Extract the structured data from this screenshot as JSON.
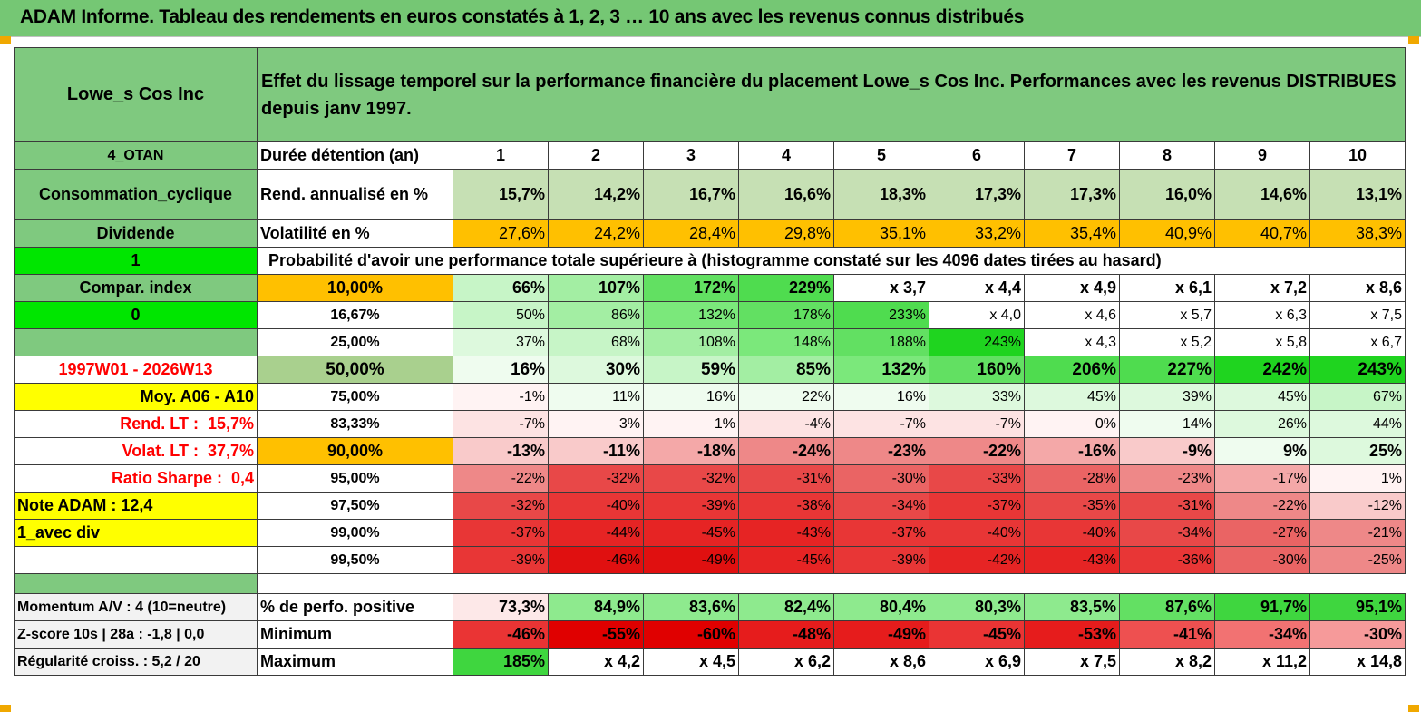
{
  "title": "ADAM Informe. Tableau des rendements en euros constatés à 1, 2, 3 … 10 ans avec les revenus connus distribués",
  "colors": {
    "green_header": "#7fc97f",
    "amber": "#ffc000",
    "yellow": "#ffff00",
    "bright_green": "#00e600",
    "red_text": "#ff0000"
  },
  "left_panel": {
    "instrument": "Lowe_s Cos Inc",
    "group": "4_OTAN",
    "sector": "Consommation_cyclique",
    "type": "Dividende",
    "flag1": "1",
    "compar_index": "Compar. index",
    "flag2": "0",
    "period": "1997W01 - 2026W13",
    "moy": "Moy. A06 - A10",
    "rend_lt_label": "Rend. LT :",
    "rend_lt_value": "15,7%",
    "volat_lt_label": "Volat. LT :",
    "volat_lt_value": "37,7%",
    "sharpe_label": "Ratio Sharpe :",
    "sharpe_value": "0,4",
    "note": "Note ADAM : 12,4",
    "avec_div": "1_avec div",
    "momentum": "Momentum A/V : 4 (10=neutre)",
    "zscore": "Z-score 10s | 28a : -1,8 | 0,0",
    "regularite": "Régularité croiss. : 5,2 / 20"
  },
  "header_description": "Effet du lissage temporel sur la performance financière du placement Lowe_s Cos Inc. Performances avec les revenus DISTRIBUES depuis janv 1997.",
  "duration_label": "Durée détention (an)",
  "years": [
    "1",
    "2",
    "3",
    "4",
    "5",
    "6",
    "7",
    "8",
    "9",
    "10"
  ],
  "rend_label": "Rend. annualisé en %",
  "rend_values": [
    "15,7%",
    "14,2%",
    "16,7%",
    "16,6%",
    "18,3%",
    "17,3%",
    "17,3%",
    "16,0%",
    "14,6%",
    "13,1%"
  ],
  "vol_label": "Volatilité en %",
  "vol_values": [
    "27,6%",
    "24,2%",
    "28,4%",
    "29,8%",
    "35,1%",
    "33,2%",
    "35,4%",
    "40,9%",
    "40,7%",
    "38,3%"
  ],
  "prob_title": "Probabilité d'avoir une performance totale supérieure à (histogramme constaté sur les 4096 dates tirées au hasard)",
  "prob_rows": [
    {
      "p": "10,00%",
      "v": [
        "66%",
        "107%",
        "172%",
        "229%",
        "x 3,7",
        "x 4,4",
        "x 4,9",
        "x 6,1",
        "x 7,2",
        "x 8,6"
      ]
    },
    {
      "p": "16,67%",
      "v": [
        "50%",
        "86%",
        "132%",
        "178%",
        "233%",
        "x 4,0",
        "x 4,6",
        "x 5,7",
        "x 6,3",
        "x 7,5"
      ]
    },
    {
      "p": "25,00%",
      "v": [
        "37%",
        "68%",
        "108%",
        "148%",
        "188%",
        "243%",
        "x 4,3",
        "x 5,2",
        "x 5,8",
        "x 6,7"
      ]
    },
    {
      "p": "50,00%",
      "v": [
        "16%",
        "30%",
        "59%",
        "85%",
        "132%",
        "160%",
        "206%",
        "227%",
        "242%",
        "243%"
      ]
    },
    {
      "p": "75,00%",
      "v": [
        "-1%",
        "11%",
        "16%",
        "22%",
        "16%",
        "33%",
        "45%",
        "39%",
        "45%",
        "67%"
      ]
    },
    {
      "p": "83,33%",
      "v": [
        "-7%",
        "3%",
        "1%",
        "-4%",
        "-7%",
        "-7%",
        "0%",
        "14%",
        "26%",
        "44%"
      ]
    },
    {
      "p": "90,00%",
      "v": [
        "-13%",
        "-11%",
        "-18%",
        "-24%",
        "-23%",
        "-22%",
        "-16%",
        "-9%",
        "9%",
        "25%"
      ]
    },
    {
      "p": "95,00%",
      "v": [
        "-22%",
        "-32%",
        "-32%",
        "-31%",
        "-30%",
        "-33%",
        "-28%",
        "-23%",
        "-17%",
        "1%"
      ]
    },
    {
      "p": "97,50%",
      "v": [
        "-32%",
        "-40%",
        "-39%",
        "-38%",
        "-34%",
        "-37%",
        "-35%",
        "-31%",
        "-22%",
        "-12%"
      ]
    },
    {
      "p": "99,00%",
      "v": [
        "-37%",
        "-44%",
        "-45%",
        "-43%",
        "-37%",
        "-40%",
        "-40%",
        "-34%",
        "-27%",
        "-21%"
      ]
    },
    {
      "p": "99,50%",
      "v": [
        "-39%",
        "-46%",
        "-49%",
        "-45%",
        "-39%",
        "-42%",
        "-43%",
        "-36%",
        "-30%",
        "-25%"
      ]
    }
  ],
  "stats": [
    {
      "label": "% de perfo. positive",
      "v": [
        "73,3%",
        "84,9%",
        "83,6%",
        "82,4%",
        "80,4%",
        "80,3%",
        "83,5%",
        "87,6%",
        "91,7%",
        "95,1%"
      ]
    },
    {
      "label": "Minimum",
      "v": [
        "-46%",
        "-55%",
        "-60%",
        "-48%",
        "-49%",
        "-45%",
        "-53%",
        "-41%",
        "-34%",
        "-30%"
      ]
    },
    {
      "label": "Maximum",
      "v": [
        "185%",
        "x 4,2",
        "x 4,5",
        "x 6,2",
        "x 8,6",
        "x 6,9",
        "x 7,5",
        "x 8,2",
        "x 11,2",
        "x 14,8"
      ]
    }
  ]
}
